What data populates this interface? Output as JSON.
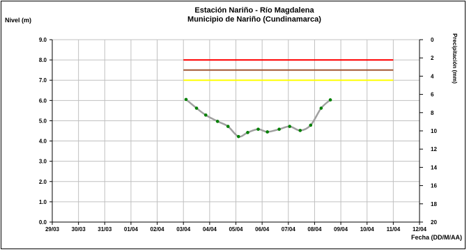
{
  "chart_data": {
    "type": "line",
    "title": "Estación Nariño  - Río Magdalena",
    "subtitle": "Municipio de Nariño (Cundinamarca)",
    "ylabel": "Nivel (m)",
    "xlabel": "Fecha (DD/M/AA)",
    "y2label": "Precipitación (mm)",
    "ylim": [
      0,
      9
    ],
    "y2lim": [
      20,
      0
    ],
    "yticks": [
      "0.0",
      "1.0",
      "2.0",
      "3.0",
      "4.0",
      "5.0",
      "6.0",
      "7.0",
      "8.0",
      "9.0"
    ],
    "y2ticks": [
      "0",
      "2",
      "4",
      "6",
      "8",
      "10",
      "12",
      "14",
      "16",
      "18",
      "20"
    ],
    "xticks": [
      "29/03",
      "30/03",
      "31/03",
      "01/04",
      "02/04",
      "03/04",
      "04/04",
      "05/04",
      "06/04",
      "07/04",
      "08/04",
      "09/04",
      "10/04",
      "11/04",
      "12/04"
    ],
    "grid": true,
    "thresholds": [
      {
        "value": 8.0,
        "color": "#ff0000"
      },
      {
        "value": 7.5,
        "color": "#a0522d"
      },
      {
        "value": 7.0,
        "color": "#ffff00"
      }
    ],
    "series": [
      {
        "line_color": "#a0a0a0",
        "marker_color": "#008000",
        "x": [
          5.1,
          5.5,
          5.85,
          6.3,
          6.7,
          7.1,
          7.45,
          7.85,
          8.2,
          8.65,
          9.05,
          9.45,
          9.85,
          10.25,
          10.6
        ],
        "values": [
          6.05,
          5.62,
          5.28,
          4.97,
          4.72,
          4.22,
          4.42,
          4.58,
          4.45,
          4.58,
          4.72,
          4.52,
          4.78,
          5.62,
          6.03
        ]
      }
    ]
  }
}
